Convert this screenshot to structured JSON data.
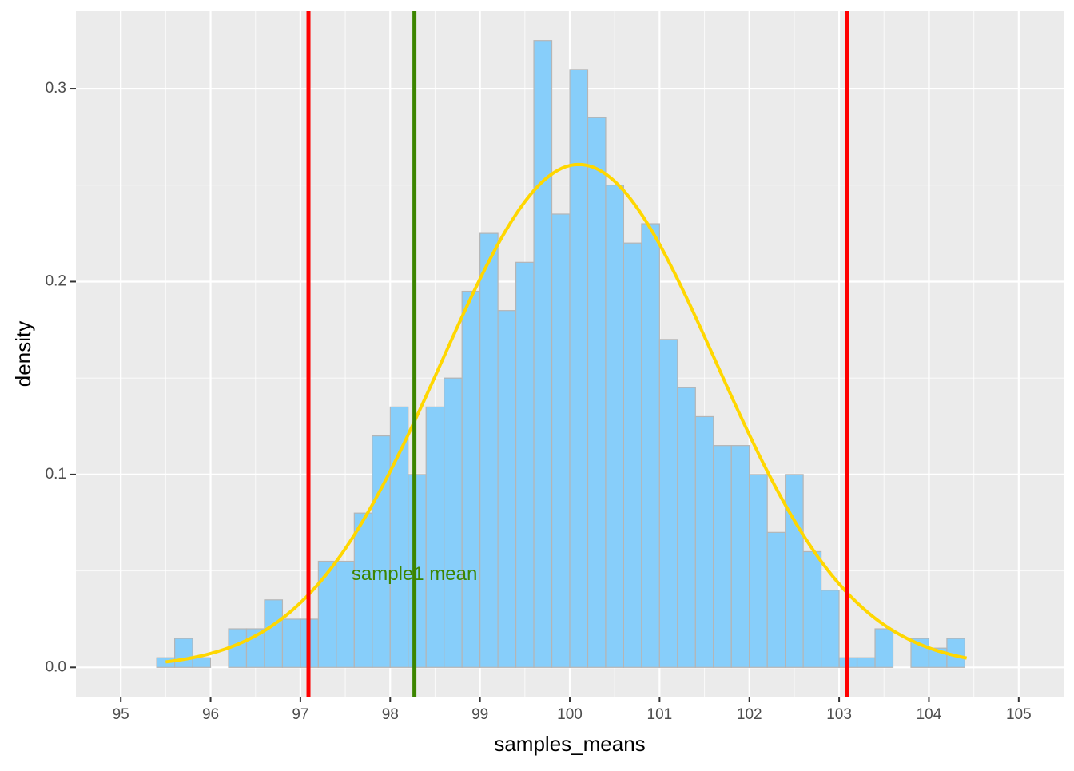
{
  "chart_data": {
    "type": "bar",
    "subtype": "histogram_with_density",
    "xlabel": "samples_means",
    "ylabel": "density",
    "xlim": [
      94.5,
      105.5
    ],
    "ylim": [
      -0.0152,
      0.3402
    ],
    "x_ticks": [
      95,
      96,
      97,
      98,
      99,
      100,
      101,
      102,
      103,
      104,
      105
    ],
    "y_ticks": [
      0.0,
      0.1,
      0.2,
      0.3
    ],
    "y_tick_labels": [
      "0.0",
      "0.1",
      "0.2",
      "0.3"
    ],
    "grid": true,
    "bin_width": 0.2,
    "bins": {
      "x_start": [
        95.0,
        95.2,
        95.4,
        95.6,
        95.8,
        96.0,
        96.2,
        96.4,
        96.6,
        96.8,
        97.0,
        97.2,
        97.4,
        97.6,
        97.8,
        98.0,
        98.2,
        98.4,
        98.6,
        98.8,
        99.0,
        99.2,
        99.4,
        99.6,
        99.8,
        100.0,
        100.2,
        100.4,
        100.6,
        100.8,
        101.0,
        101.2,
        101.4,
        101.6,
        101.8,
        102.0,
        102.2,
        102.4,
        102.6,
        102.8,
        103.0,
        103.2,
        103.4,
        103.6,
        103.8,
        104.0,
        104.2,
        104.4,
        104.6,
        104.8
      ],
      "density": [
        0,
        0,
        0.005,
        0.015,
        0.005,
        0,
        0.02,
        0.02,
        0.035,
        0.025,
        0.025,
        0.055,
        0.055,
        0.08,
        0.12,
        0.135,
        0.1,
        0.135,
        0.15,
        0.195,
        0.225,
        0.185,
        0.21,
        0.325,
        0.235,
        0.31,
        0.285,
        0.25,
        0.22,
        0.23,
        0.17,
        0.145,
        0.13,
        0.115,
        0.115,
        0.1,
        0.07,
        0.1,
        0.06,
        0.04,
        0.005,
        0.005,
        0.02,
        0,
        0.015,
        0.01,
        0.015,
        0,
        0,
        0
      ]
    },
    "density_curve": {
      "name": "normal density",
      "mean": 100.1,
      "sd": 1.53,
      "x_range": [
        95.5,
        104.42
      ]
    },
    "vlines": [
      {
        "x": 97.09,
        "color": "#FF0000"
      },
      {
        "x": 98.27,
        "color": "#3C8500"
      },
      {
        "x": 103.09,
        "color": "#FF0000"
      }
    ],
    "annotation": {
      "text": "sample1 mean",
      "x": 98.27,
      "y": 0.048,
      "color": "#3C8500"
    },
    "colors": {
      "panel_bg": "#EBEBEB",
      "grid_major": "#FFFFFF",
      "bar_fill": "#87CEFA",
      "bar_outline": "#B5B5B5",
      "density_line": "#FFD700",
      "axis_text": "#4D4D4D",
      "axis_title": "#000000",
      "tick_color": "#333333"
    }
  }
}
